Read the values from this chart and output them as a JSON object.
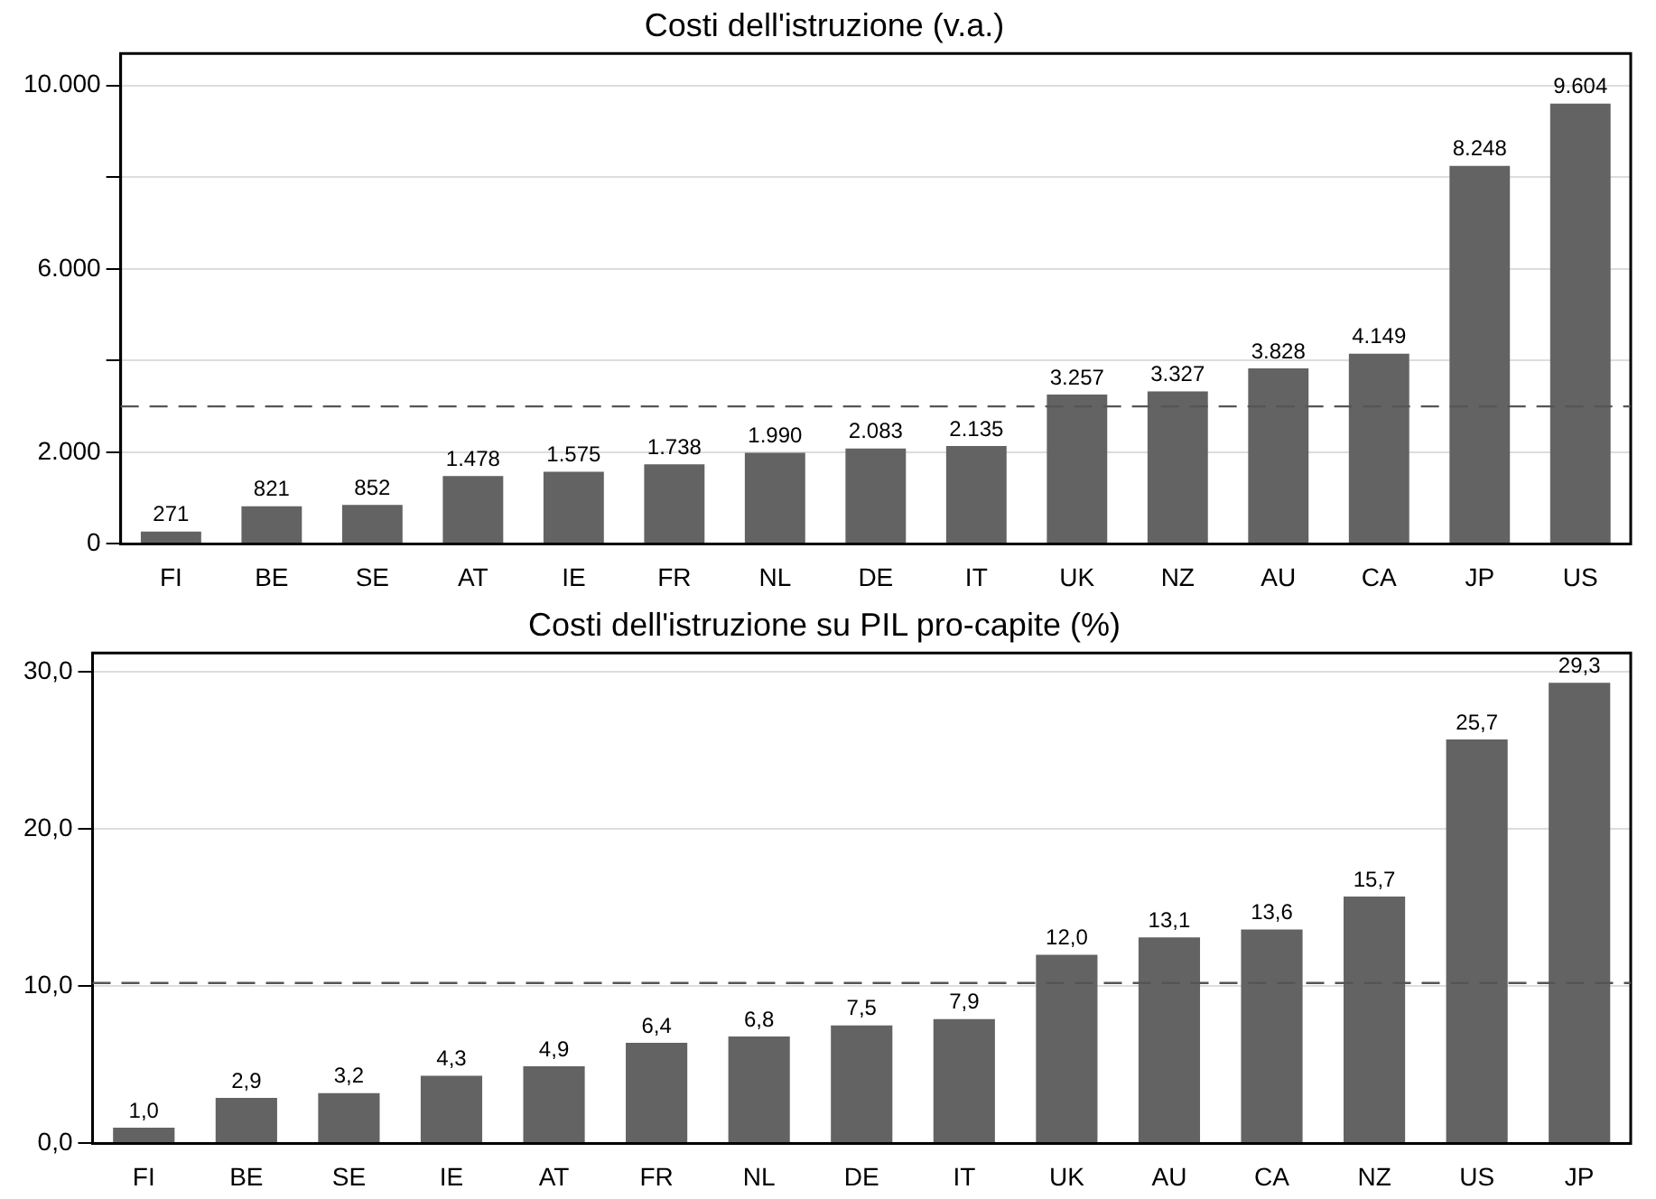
{
  "chart_data": [
    {
      "type": "bar",
      "title": "Costi dell'istruzione (v.a.)",
      "categories": [
        "FI",
        "BE",
        "SE",
        "AT",
        "IE",
        "FR",
        "NL",
        "DE",
        "IT",
        "UK",
        "NZ",
        "AU",
        "CA",
        "JP",
        "US"
      ],
      "series": [
        {
          "color": "#636363",
          "values": [
            271,
            821,
            852,
            1478,
            1575,
            1738,
            1990,
            2083,
            2135,
            3257,
            3327,
            3828,
            4149,
            8248,
            9604
          ],
          "value_labels": [
            "271",
            "821",
            "852",
            "1.478",
            "1.575",
            "1.738",
            "1.990",
            "2.083",
            "2.135",
            "3.257",
            "3.327",
            "3.828",
            "4.149",
            "8.248",
            "9.604"
          ]
        }
      ],
      "ylim": [
        0,
        10700
      ],
      "yticks": [
        {
          "value": 0,
          "label": "0"
        },
        {
          "value": 2000,
          "label": "2.000"
        },
        {
          "value": 4000,
          "label": null
        },
        {
          "value": 6000,
          "label": "6.000"
        },
        {
          "value": 8000,
          "label": null
        },
        {
          "value": 10000,
          "label": "10.000"
        }
      ],
      "grid": "y",
      "legend": false,
      "ref_lines": [
        {
          "axis": "y",
          "value": 3000,
          "color": "#555555",
          "line_style": "dashed"
        }
      ]
    },
    {
      "type": "bar",
      "title": "Costi dell'istruzione su PIL pro-capite (%)",
      "categories": [
        "FI",
        "BE",
        "SE",
        "IE",
        "AT",
        "FR",
        "NL",
        "DE",
        "IT",
        "UK",
        "AU",
        "CA",
        "NZ",
        "US",
        "JP"
      ],
      "series": [
        {
          "color": "#636363",
          "values": [
            1.0,
            2.9,
            3.2,
            4.3,
            4.9,
            6.4,
            6.8,
            7.5,
            7.9,
            12.0,
            13.1,
            13.6,
            15.7,
            25.7,
            29.3
          ],
          "value_labels": [
            "1,0",
            "2,9",
            "3,2",
            "4,3",
            "4,9",
            "6,4",
            "6,8",
            "7,5",
            "7,9",
            "12,0",
            "13,1",
            "13,6",
            "15,7",
            "25,7",
            "29,3"
          ]
        }
      ],
      "ylim": [
        0,
        31.2
      ],
      "yticks": [
        {
          "value": 0,
          "label": "0,0"
        },
        {
          "value": 10,
          "label": "10,0"
        },
        {
          "value": 20,
          "label": "20,0"
        },
        {
          "value": 30,
          "label": "30,0"
        }
      ],
      "grid": "y",
      "legend": false,
      "ref_lines": [
        {
          "axis": "y",
          "value": 10.2,
          "color": "#555555",
          "line_style": "dashed"
        }
      ]
    }
  ]
}
